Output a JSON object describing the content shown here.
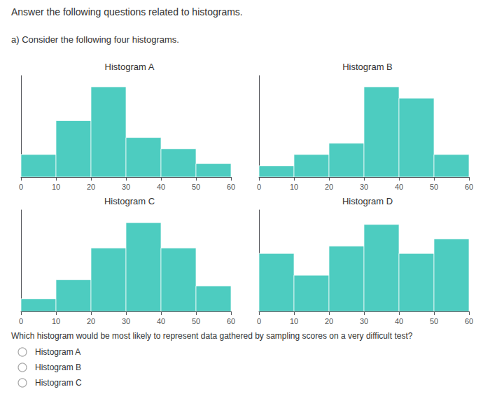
{
  "title": "Answer the following questions related to histograms.",
  "subtitle": "a) Consider the following four histograms.",
  "annotations": [
    "Which histogram would be most likely to represent data gathered by sampling scores on a very difficult test?",
    "Histogram A",
    "Histogram B",
    "Histogram C"
  ],
  "chart_data": [
    {
      "type": "histogram",
      "title": "Histogram A",
      "bins": [
        0,
        10,
        20,
        30,
        40,
        50,
        60
      ],
      "values": [
        2,
        5,
        8,
        3.5,
        2.5,
        1.2
      ],
      "color": "#4DCCC0",
      "xlim": [
        0,
        60
      ],
      "xticks": [
        0,
        10,
        20,
        30,
        40,
        50,
        60
      ],
      "ylim": [
        0,
        9
      ],
      "grid": false,
      "tick_labels": "x"
    },
    {
      "type": "histogram",
      "title": "Histogram B",
      "bins": [
        0,
        10,
        20,
        30,
        40,
        50,
        60
      ],
      "values": [
        1,
        2,
        3,
        8,
        7,
        2
      ],
      "color": "#4DCCC0",
      "xlim": [
        0,
        60
      ],
      "xticks": [
        0,
        10,
        20,
        30,
        40,
        50,
        60
      ],
      "ylim": [
        0,
        9
      ],
      "grid": false,
      "tick_labels": "x"
    },
    {
      "type": "histogram",
      "title": "Histogram C",
      "bins": [
        0,
        10,
        20,
        30,
        40,
        50,
        60
      ],
      "values": [
        1,
        2.5,
        5,
        7,
        5,
        2
      ],
      "color": "#4DCCC0",
      "xlim": [
        0,
        60
      ],
      "xticks": [
        0,
        10,
        20,
        30,
        40,
        50,
        60
      ],
      "ylim": [
        0,
        8
      ],
      "grid": false,
      "tick_labels": "x"
    },
    {
      "type": "histogram",
      "title": "Histogram D",
      "bins": [
        0,
        10,
        20,
        30,
        40,
        50,
        60
      ],
      "values": [
        4,
        2.5,
        4.5,
        6,
        4,
        5
      ],
      "color": "#4DCCC0",
      "xlim": [
        0,
        60
      ],
      "xticks": [
        0,
        10,
        20,
        30,
        40,
        50,
        60
      ],
      "ylim": [
        0,
        7
      ],
      "grid": false,
      "tick_labels": "x"
    }
  ]
}
